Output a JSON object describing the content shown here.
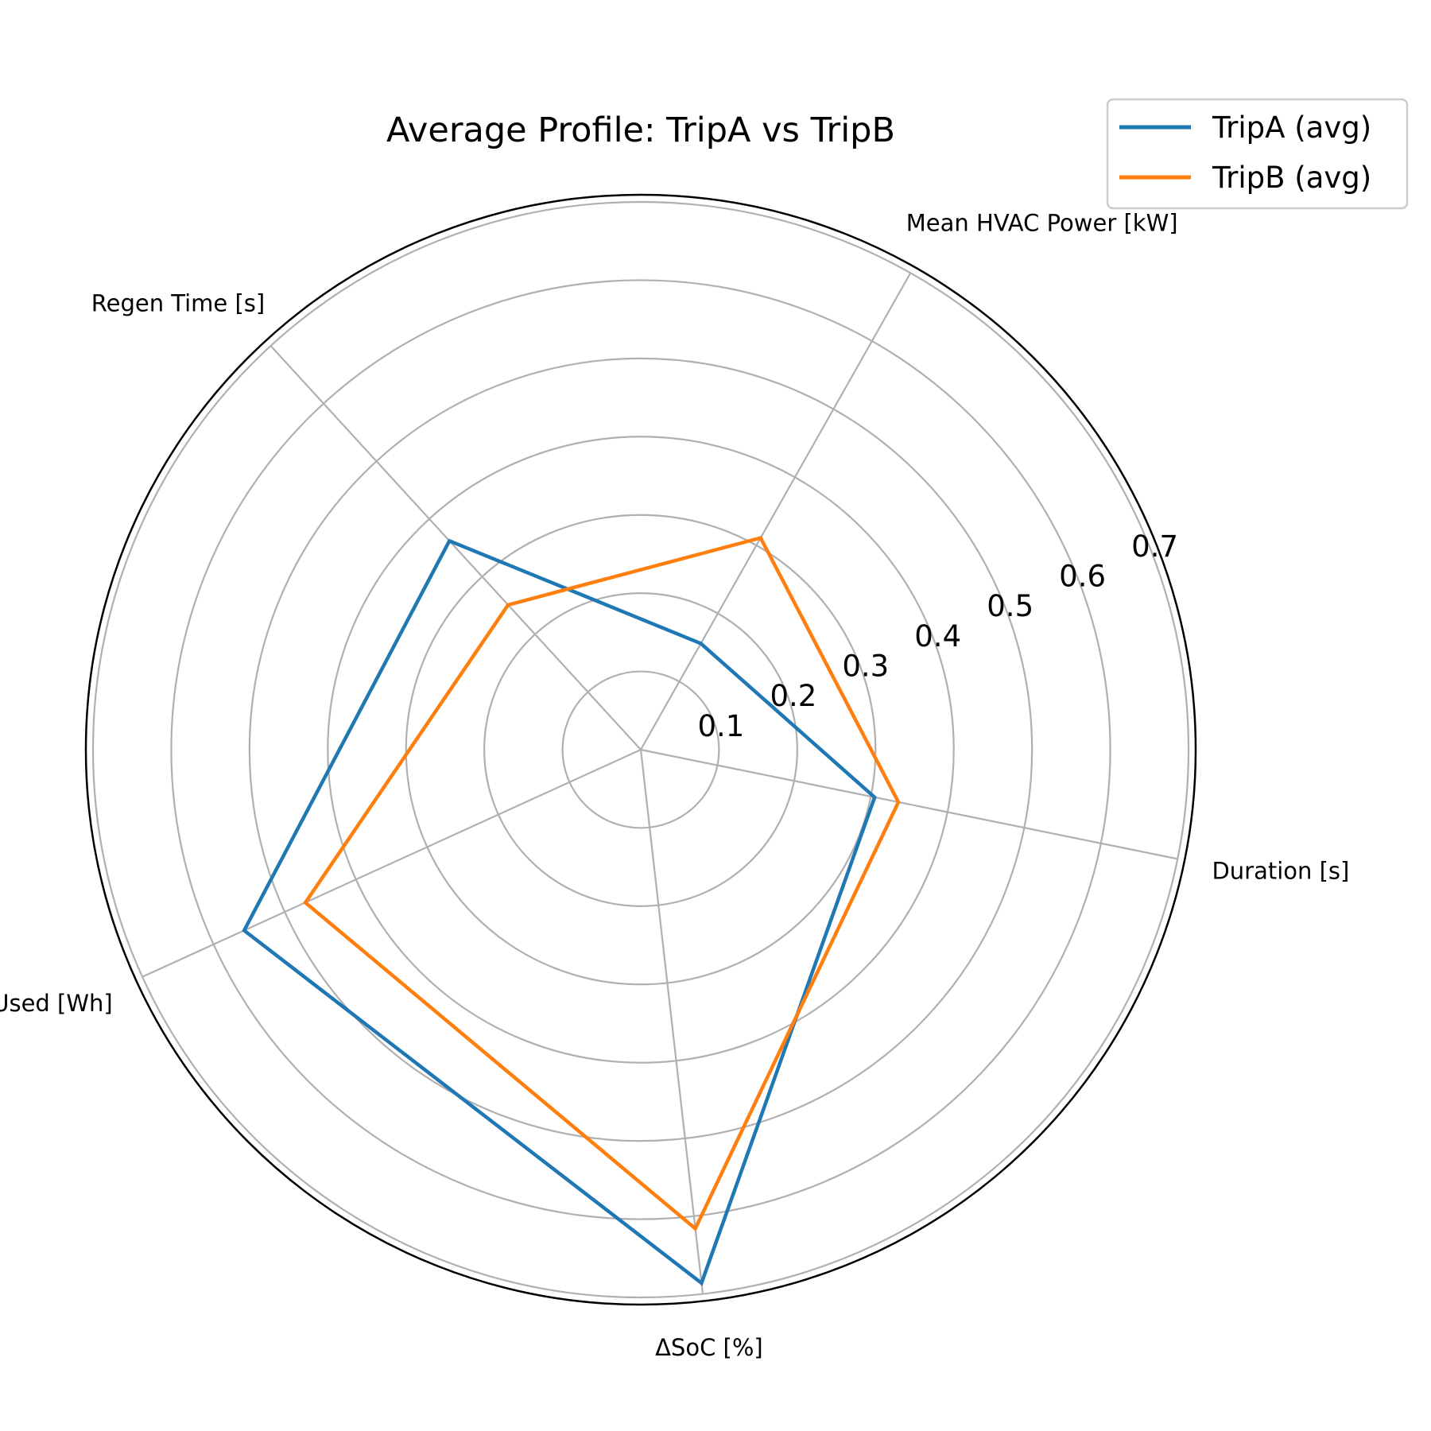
{
  "chart_data": {
    "type": "radar",
    "title": "Average Profile: TripA vs TripB",
    "axes": [
      "Duration [s]",
      "ΔSoC [%]",
      "Energy Used [Wh]",
      "Regen Time [s]",
      "Mean HVAC Power [kW]"
    ],
    "rlim": [
      0,
      0.7
    ],
    "rticks": [
      0.1,
      0.2,
      0.3,
      0.4,
      0.5,
      0.6,
      0.7
    ],
    "rtick_labels": [
      "0.1",
      "0.2",
      "0.3",
      "0.4",
      "0.5",
      "0.6",
      "0.7"
    ],
    "grid": true,
    "legend_position": "top-right",
    "series": [
      {
        "name": "TripA (avg)",
        "color": "#1f77b4",
        "values": [
          0.305,
          0.686,
          0.557,
          0.362,
          0.156
        ]
      },
      {
        "name": "TripB (avg)",
        "color": "#ff7f0e",
        "values": [
          0.336,
          0.616,
          0.471,
          0.251,
          0.311
        ]
      }
    ]
  }
}
